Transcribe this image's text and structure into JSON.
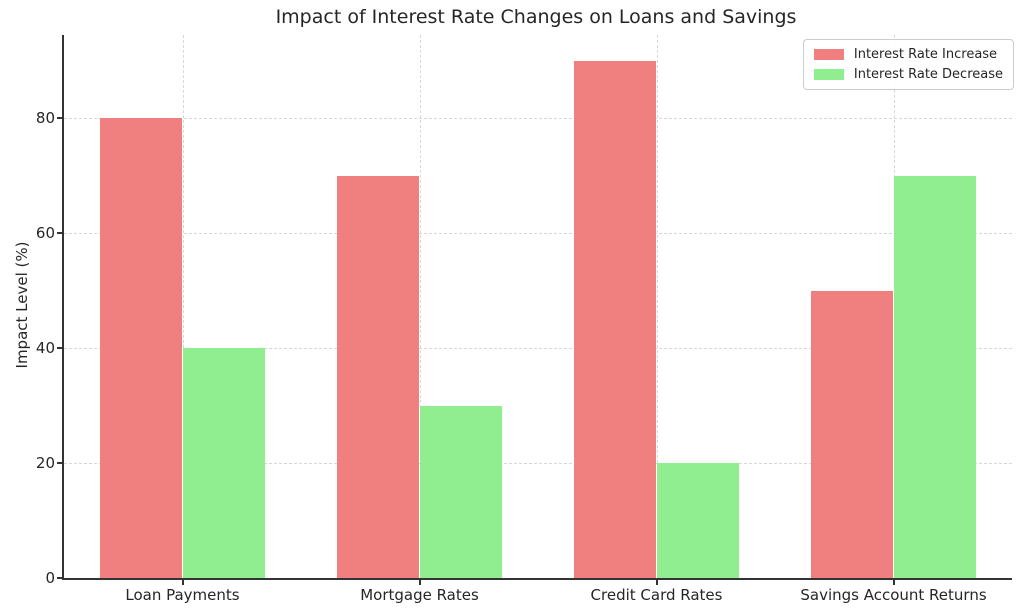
{
  "figure": {
    "title": "Impact of Interest Rate Changes on Loans and Savings"
  },
  "chart_data": {
    "type": "bar",
    "title": "Impact of Interest Rate Changes on Loans and Savings",
    "categories": [
      "Loan Payments",
      "Mortgage Rates",
      "Credit Card Rates",
      "Savings Account Returns"
    ],
    "series": [
      {
        "name": "Interest Rate Increase",
        "color": "#f08080",
        "values": [
          80,
          70,
          90,
          50
        ]
      },
      {
        "name": "Interest Rate Decrease",
        "color": "#90ee90",
        "values": [
          40,
          30,
          20,
          70
        ]
      }
    ],
    "xlabel": "",
    "ylabel": "Impact Level (%)",
    "ylim": [
      0,
      94.5
    ],
    "yticks": [
      0,
      20,
      40,
      60,
      80
    ],
    "grid": true,
    "grid_style": "dashed",
    "bar_width_fraction": 0.35,
    "legend_position": "upper right"
  },
  "colors": {
    "increase": "#f08080",
    "decrease": "#90ee90",
    "grid": "#d8d8d8",
    "spine": "#333333",
    "text": "#262626"
  }
}
